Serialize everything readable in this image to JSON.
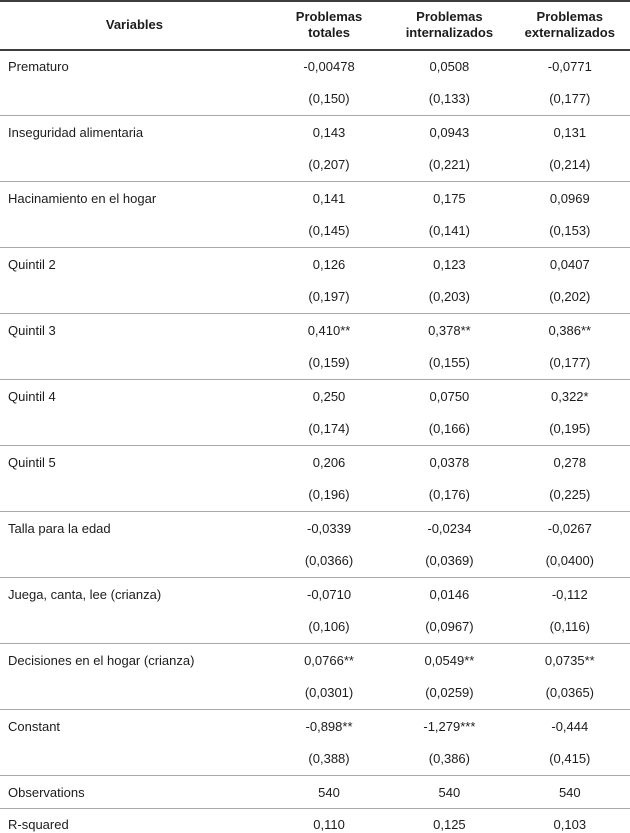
{
  "table": {
    "header": {
      "variables": "Variables",
      "col1": "Problemas totales",
      "col2": "Problemas internalizados",
      "col3": "Problemas externalizados"
    },
    "groups": [
      {
        "label": "Prematuro",
        "coef": [
          "-0,00478",
          "0,0508",
          "-0,0771"
        ],
        "se": [
          "(0,150)",
          "(0,133)",
          "(0,177)"
        ]
      },
      {
        "label": "Inseguridad alimentaria",
        "coef": [
          "0,143",
          "0,0943",
          "0,131"
        ],
        "se": [
          "(0,207)",
          "(0,221)",
          "(0,214)"
        ]
      },
      {
        "label": "Hacinamiento en el hogar",
        "coef": [
          "0,141",
          "0,175",
          "0,0969"
        ],
        "se": [
          "(0,145)",
          "(0,141)",
          "(0,153)"
        ]
      },
      {
        "label": "Quintil 2",
        "coef": [
          "0,126",
          "0,123",
          "0,0407"
        ],
        "se": [
          "(0,197)",
          "(0,203)",
          "(0,202)"
        ]
      },
      {
        "label": "Quintil 3",
        "coef": [
          "0,410**",
          "0,378**",
          "0,386**"
        ],
        "se": [
          "(0,159)",
          "(0,155)",
          "(0,177)"
        ]
      },
      {
        "label": "Quintil 4",
        "coef": [
          "0,250",
          "0,0750",
          "0,322*"
        ],
        "se": [
          "(0,174)",
          "(0,166)",
          "(0,195)"
        ]
      },
      {
        "label": "Quintil 5",
        "coef": [
          "0,206",
          "0,0378",
          "0,278"
        ],
        "se": [
          "(0,196)",
          "(0,176)",
          "(0,225)"
        ]
      },
      {
        "label": "Talla para la edad",
        "coef": [
          "-0,0339",
          "-0,0234",
          "-0,0267"
        ],
        "se": [
          "(0,0366)",
          "(0,0369)",
          "(0,0400)"
        ]
      },
      {
        "label": "Juega, canta, lee (crianza)",
        "coef": [
          "-0,0710",
          "0,0146",
          "-0,112"
        ],
        "se": [
          "(0,106)",
          "(0,0967)",
          "(0,116)"
        ]
      },
      {
        "label": "Decisiones en el hogar (crianza)",
        "coef": [
          "0,0766**",
          "0,0549**",
          "0,0735**"
        ],
        "se": [
          "(0,0301)",
          "(0,0259)",
          "(0,0365)"
        ]
      },
      {
        "label": "Constant",
        "coef": [
          "-0,898**",
          "-1,279***",
          "-0,444"
        ],
        "se": [
          "(0,388)",
          "(0,386)",
          "(0,415)"
        ]
      }
    ],
    "summary": [
      {
        "label": "Observations",
        "values": [
          "540",
          "540",
          "540"
        ]
      },
      {
        "label": "R-squared",
        "values": [
          "0,110",
          "0,125",
          "0,103"
        ]
      }
    ]
  },
  "colors": {
    "rule_dark": "#3d3d3d",
    "rule_light": "#a8a8a8",
    "text": "#1c1c1c",
    "background": "#ffffff"
  }
}
